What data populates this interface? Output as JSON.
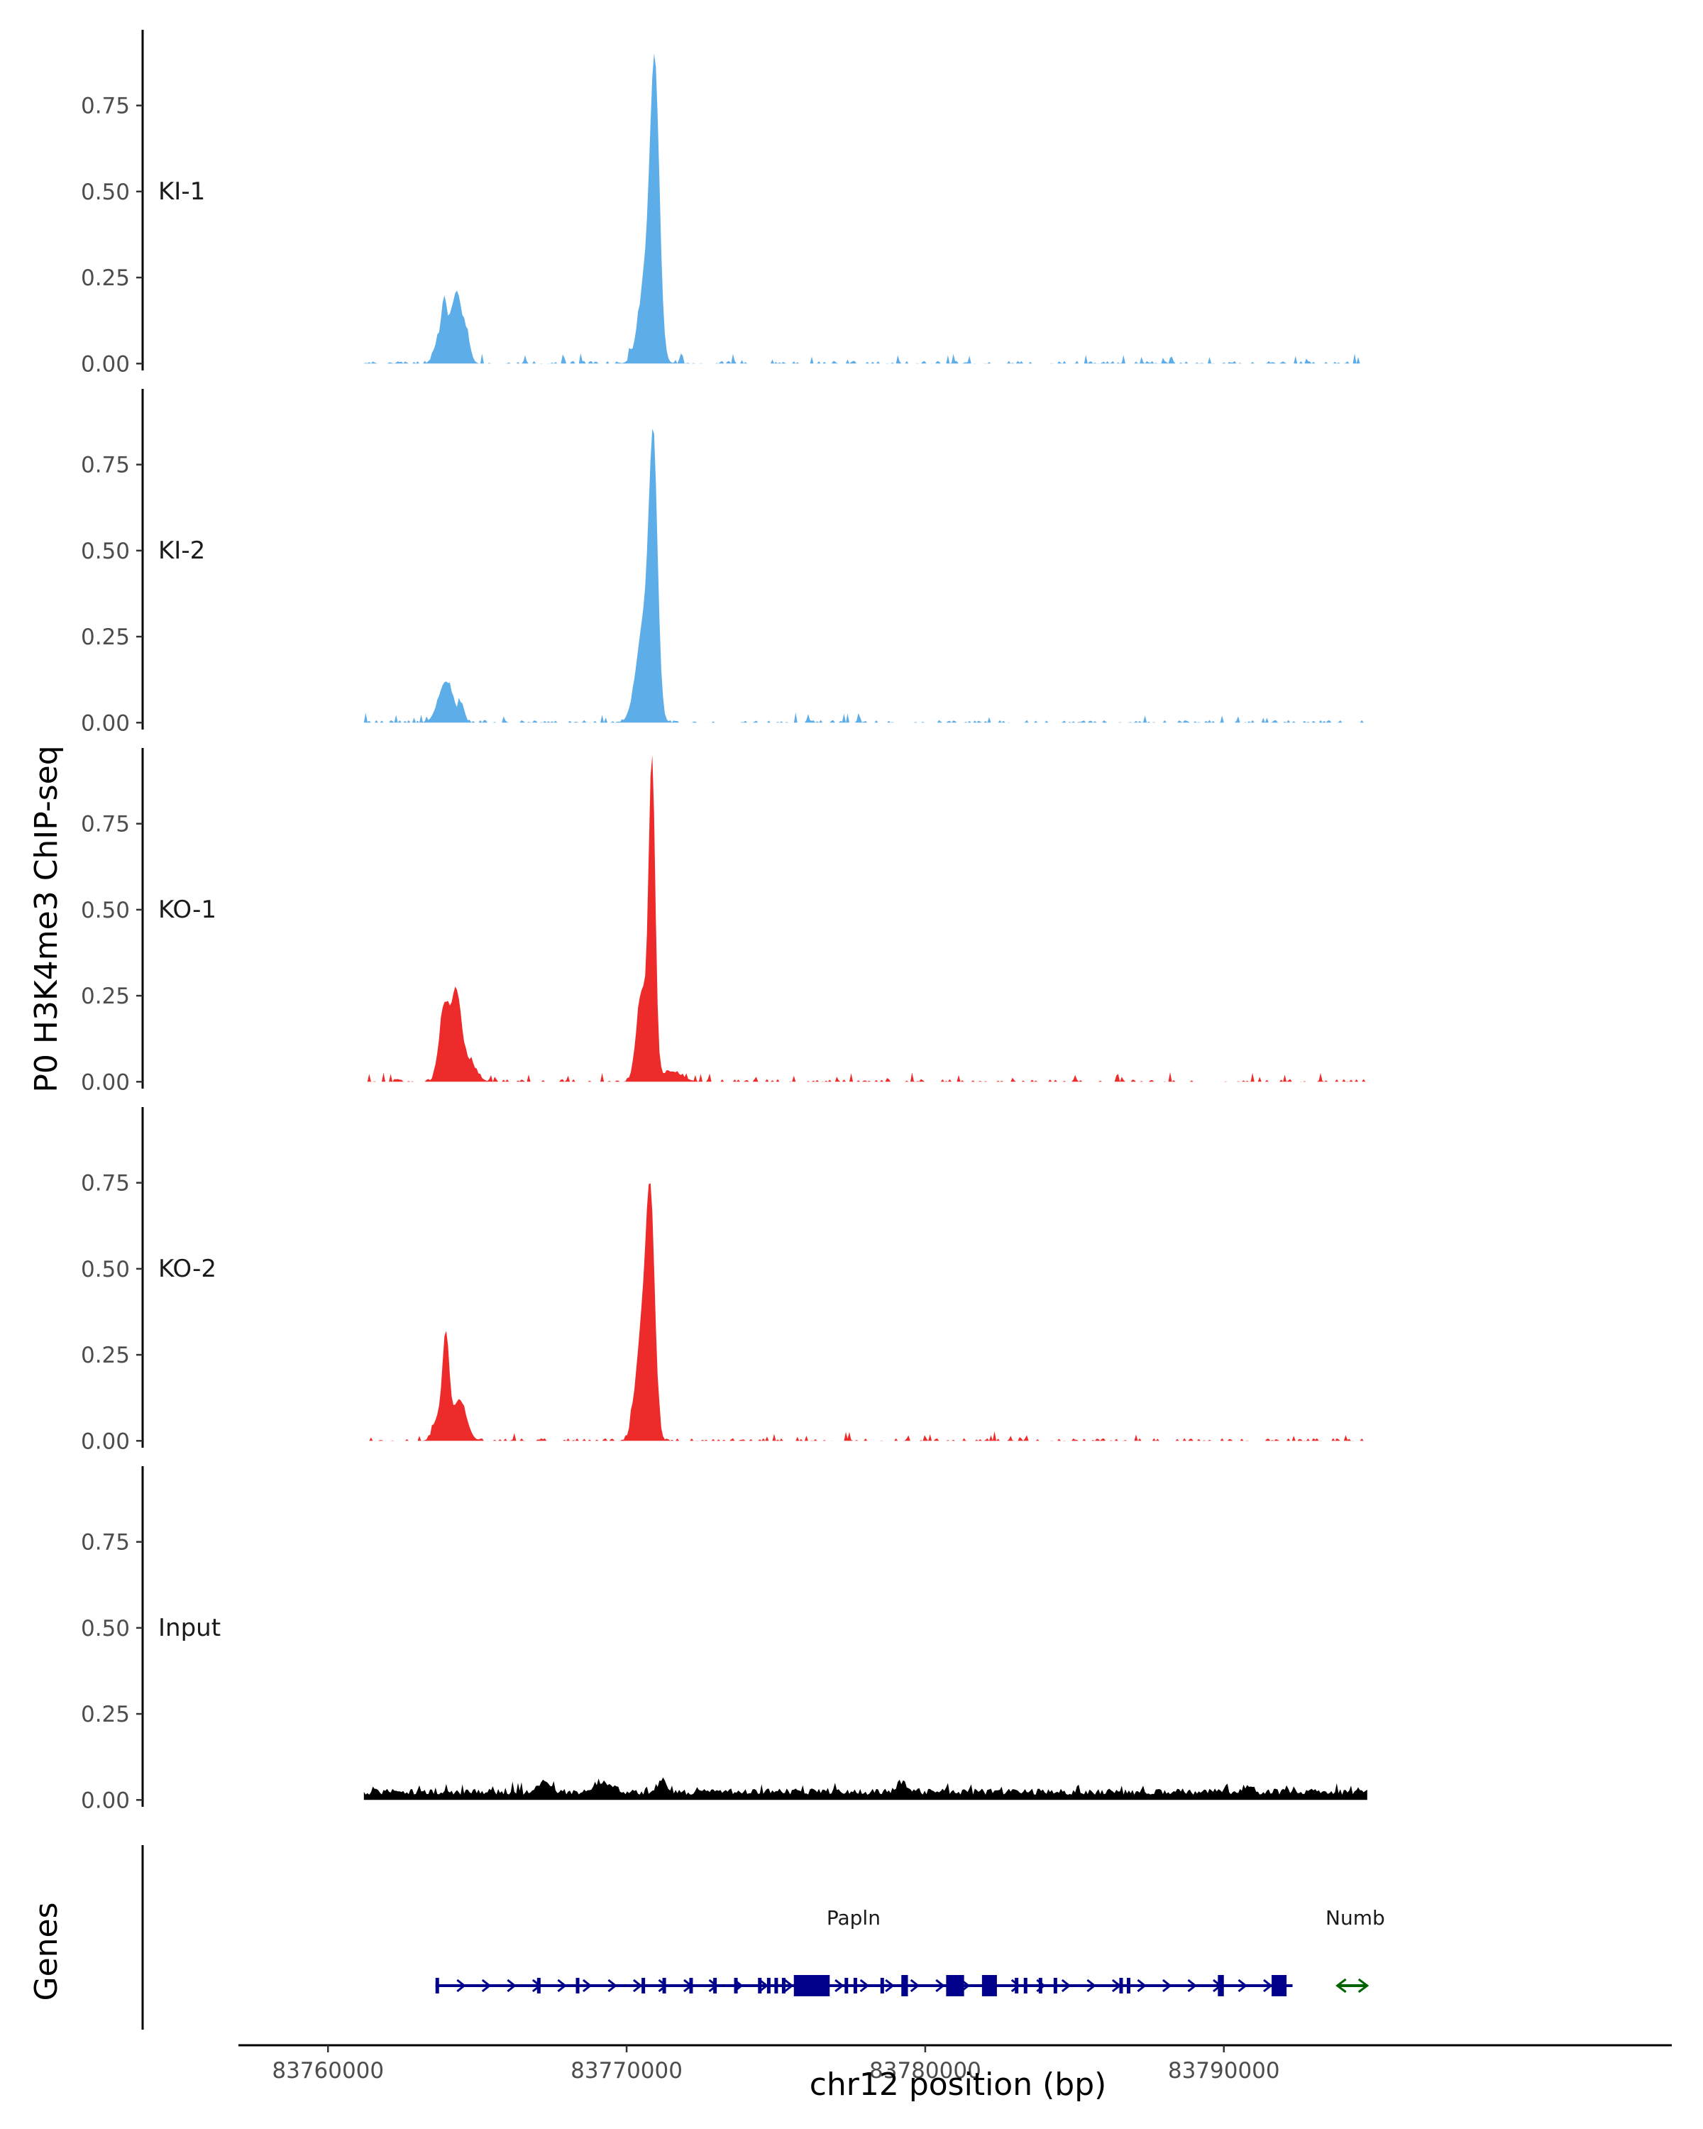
{
  "chart_data": {
    "type": "area",
    "ylabel": "P0 H3K4me3 ChIP-seq",
    "xlabel": "chr12 position (bp)",
    "xlim": [
      83757000,
      83805000
    ],
    "ylim": [
      -0.02,
      0.97
    ],
    "y_ticks": [
      0,
      0.25,
      0.5,
      0.75
    ],
    "y_tick_labels": [
      "0.00",
      "0.25",
      "0.50",
      "0.75"
    ],
    "x_ticks": [
      83760000,
      83770000,
      83780000,
      83790000
    ],
    "x_tick_labels": [
      "83760000",
      "83770000",
      "83780000",
      "83790000"
    ],
    "signal_range": [
      83761200,
      83794800
    ],
    "tracks": [
      {
        "name": "KI-1",
        "color": "#5DADE8",
        "background": [
          0.0,
          0.01,
          0.03
        ],
        "peaks": [
          [
            83763700,
            0.07,
            150
          ],
          [
            83763900,
            0.16,
            90
          ],
          [
            83764150,
            0.13,
            110
          ],
          [
            83764350,
            0.16,
            110
          ],
          [
            83764600,
            0.1,
            140
          ],
          [
            83770700,
            0.28,
            260
          ],
          [
            83770950,
            0.72,
            150
          ]
        ]
      },
      {
        "name": "KI-2",
        "color": "#5DADE8",
        "background": [
          0.0,
          0.01,
          0.03
        ],
        "peaks": [
          [
            83763950,
            0.12,
            250
          ],
          [
            83764500,
            0.04,
            90
          ],
          [
            83770600,
            0.3,
            260
          ],
          [
            83770900,
            0.7,
            140
          ]
        ]
      },
      {
        "name": "KO-1",
        "color": "#EE2B2B",
        "background": [
          0.0,
          0.01,
          0.03
        ],
        "peaks": [
          [
            83763900,
            0.22,
            170
          ],
          [
            83764300,
            0.24,
            160
          ],
          [
            83764700,
            0.06,
            250
          ],
          [
            83770500,
            0.26,
            170
          ],
          [
            83770850,
            0.92,
            110
          ],
          [
            83771500,
            0.03,
            350
          ]
        ]
      },
      {
        "name": "KO-2",
        "color": "#EE2B2B",
        "background": [
          0.0,
          0.01,
          0.03
        ],
        "peaks": [
          [
            83763700,
            0.07,
            170
          ],
          [
            83763950,
            0.28,
            110
          ],
          [
            83764400,
            0.12,
            230
          ],
          [
            83770500,
            0.3,
            200
          ],
          [
            83770800,
            0.65,
            150
          ]
        ]
      },
      {
        "name": "Input",
        "color": "#000000",
        "background": [
          0.015,
          0.025,
          0.03
        ],
        "peaks": [
          [
            83767200,
            0.03,
            200
          ],
          [
            83769200,
            0.03,
            300
          ],
          [
            83771200,
            0.04,
            150
          ],
          [
            83779200,
            0.03,
            150
          ],
          [
            83790800,
            0.02,
            150
          ]
        ]
      }
    ],
    "genes_panel": {
      "ylabel": "Genes",
      "genes": [
        {
          "name": "Papln",
          "strand": "+",
          "color": "#00008B",
          "start": 83763600,
          "end": 83792300,
          "label_pos": 83777600,
          "exons": [
            [
              83763600,
              83763680
            ],
            [
              83767000,
              83767050
            ],
            [
              83768300,
              83768360
            ],
            [
              83770500,
              83770560
            ],
            [
              83771200,
              83771260
            ],
            [
              83772100,
              83772200
            ],
            [
              83772900,
              83772960
            ],
            [
              83773600,
              83773660
            ],
            [
              83774400,
              83774460
            ],
            [
              83774700,
              83774760
            ],
            [
              83774950,
              83775010
            ],
            [
              83775200,
              83775260
            ],
            [
              83775600,
              83776800
            ],
            [
              83777300,
              83777380
            ],
            [
              83777600,
              83777680
            ],
            [
              83778500,
              83778560
            ],
            [
              83779200,
              83779420
            ],
            [
              83780700,
              83781300
            ],
            [
              83781900,
              83782400
            ],
            [
              83783000,
              83783080
            ],
            [
              83783300,
              83783380
            ],
            [
              83783800,
              83783880
            ],
            [
              83784300,
              83784380
            ],
            [
              83786500,
              83786580
            ],
            [
              83786750,
              83786830
            ],
            [
              83789800,
              83790000
            ],
            [
              83791600,
              83792100
            ]
          ]
        },
        {
          "name": "Numb",
          "strand": "-",
          "color": "#006400",
          "start": 83793800,
          "end": 83794800,
          "label_pos": 83794400,
          "exons": []
        }
      ]
    }
  }
}
